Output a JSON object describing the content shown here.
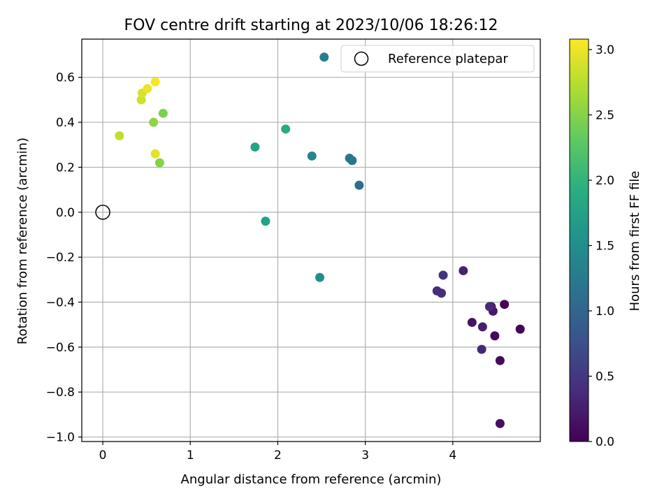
{
  "chart_data": {
    "type": "scatter",
    "title": "FOV centre drift starting at 2023/10/06 18:26:12",
    "xlabel": "Angular distance from reference (arcmin)",
    "ylabel": "Rotation from reference (arcmin)",
    "xlim": [
      -0.24,
      5.0
    ],
    "ylim": [
      -1.02,
      0.77
    ],
    "xticks": [
      0,
      1,
      2,
      3,
      4
    ],
    "xtick_labels": [
      "0",
      "1",
      "2",
      "3",
      "4"
    ],
    "yticks": [
      0.6,
      0.4,
      0.2,
      0.0,
      -0.2,
      -0.4,
      -0.6,
      -0.8,
      -1.0
    ],
    "ytick_labels": [
      "0.6",
      "0.4",
      "0.2",
      "0.0",
      "−0.2",
      "−0.4",
      "−0.6",
      "−0.8",
      "−1.0"
    ],
    "grid": true,
    "legend": {
      "placement": "top-right",
      "entries": [
        "Reference platepar"
      ]
    },
    "reference_point": {
      "x": 0.0,
      "y": 0.0,
      "label": "Reference platepar"
    },
    "colorbar": {
      "label": "Hours from first FF file",
      "colormap": "viridis",
      "range": [
        0.0,
        3.08
      ],
      "ticks": [
        0.0,
        0.5,
        1.0,
        1.5,
        2.0,
        2.5,
        3.0
      ],
      "tick_labels": [
        "0.0",
        "0.5",
        "1.0",
        "1.5",
        "2.0",
        "2.5",
        "3.0"
      ]
    },
    "points": [
      {
        "x": 4.59,
        "y": -0.41,
        "hours": 0.0
      },
      {
        "x": 4.77,
        "y": -0.52,
        "hours": 0.03
      },
      {
        "x": 4.48,
        "y": -0.55,
        "hours": 0.07
      },
      {
        "x": 4.54,
        "y": -0.66,
        "hours": 0.1
      },
      {
        "x": 4.54,
        "y": -0.94,
        "hours": 0.13
      },
      {
        "x": 4.22,
        "y": -0.49,
        "hours": 0.17
      },
      {
        "x": 4.44,
        "y": -0.42,
        "hours": 0.2
      },
      {
        "x": 4.46,
        "y": -0.44,
        "hours": 0.22
      },
      {
        "x": 4.34,
        "y": -0.51,
        "hours": 0.27
      },
      {
        "x": 4.12,
        "y": -0.26,
        "hours": 0.3
      },
      {
        "x": 4.33,
        "y": -0.61,
        "hours": 0.33
      },
      {
        "x": 4.42,
        "y": -0.42,
        "hours": 0.36
      },
      {
        "x": 3.82,
        "y": -0.35,
        "hours": 0.38
      },
      {
        "x": 3.87,
        "y": -0.36,
        "hours": 0.4
      },
      {
        "x": 3.89,
        "y": -0.28,
        "hours": 0.45
      },
      {
        "x": 2.93,
        "y": 0.12,
        "hours": 1.1
      },
      {
        "x": 2.85,
        "y": 0.23,
        "hours": 1.15
      },
      {
        "x": 2.82,
        "y": 0.24,
        "hours": 1.2
      },
      {
        "x": 2.53,
        "y": 0.69,
        "hours": 1.3
      },
      {
        "x": 2.39,
        "y": 0.25,
        "hours": 1.4
      },
      {
        "x": 2.48,
        "y": -0.29,
        "hours": 1.5
      },
      {
        "x": 1.86,
        "y": -0.04,
        "hours": 1.75
      },
      {
        "x": 1.74,
        "y": 0.29,
        "hours": 1.8
      },
      {
        "x": 2.09,
        "y": 0.37,
        "hours": 1.9
      },
      {
        "x": 0.69,
        "y": 0.44,
        "hours": 2.45
      },
      {
        "x": 0.58,
        "y": 0.4,
        "hours": 2.55
      },
      {
        "x": 0.65,
        "y": 0.22,
        "hours": 2.5
      },
      {
        "x": 0.19,
        "y": 0.34,
        "hours": 2.8
      },
      {
        "x": 0.44,
        "y": 0.5,
        "hours": 2.85
      },
      {
        "x": 0.45,
        "y": 0.53,
        "hours": 2.9
      },
      {
        "x": 0.6,
        "y": 0.26,
        "hours": 2.95
      },
      {
        "x": 0.51,
        "y": 0.55,
        "hours": 3.0
      },
      {
        "x": 0.6,
        "y": 0.58,
        "hours": 3.05
      }
    ]
  }
}
